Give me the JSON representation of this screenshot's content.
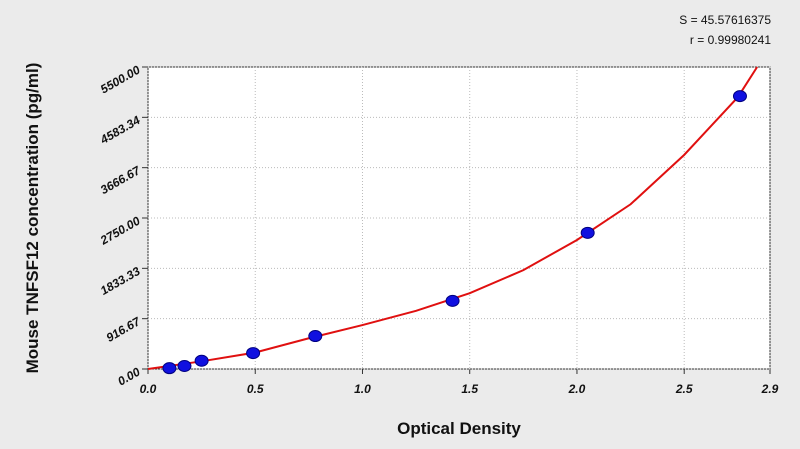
{
  "chart_data": {
    "type": "scatter",
    "annotations": [
      "S = 45.57616375",
      "r = 0.99980241"
    ],
    "xlabel": "Optical Density",
    "ylabel": "Mouse TNFSF12 concentration (pg/ml)",
    "xlim": [
      0,
      2.9
    ],
    "xticks": [
      {
        "value": 0,
        "label": "0.0"
      },
      0.5,
      {
        "value": 1,
        "label": "1.0"
      },
      1.5,
      {
        "value": 2,
        "label": "2.0"
      },
      2.5,
      2.9
    ],
    "ylim": [
      0,
      5500
    ],
    "yticks": [
      {
        "value": 0,
        "label": "0.00"
      },
      916.67,
      1833.33,
      {
        "value": 2750,
        "label": "2750.00"
      },
      3666.67,
      4583.34,
      {
        "value": 5500,
        "label": "5500.00"
      }
    ],
    "grid": true,
    "series": [
      {
        "type": "scatter",
        "color": "#1010e0",
        "x": [
          0.1,
          0.17,
          0.25,
          0.49,
          0.78,
          1.42,
          2.05,
          2.76
        ],
        "values": [
          15,
          55,
          150,
          290,
          600,
          1240,
          2480,
          4970
        ]
      },
      {
        "type": "line",
        "color": "#e01010",
        "x": [
          0,
          0.25,
          0.5,
          0.75,
          1.0,
          1.25,
          1.5,
          1.75,
          2.0,
          2.25,
          2.5,
          2.75,
          2.84
        ],
        "values": [
          0,
          140,
          300,
          560,
          800,
          1060,
          1380,
          1800,
          2350,
          3000,
          3900,
          4950,
          5500
        ]
      }
    ]
  }
}
